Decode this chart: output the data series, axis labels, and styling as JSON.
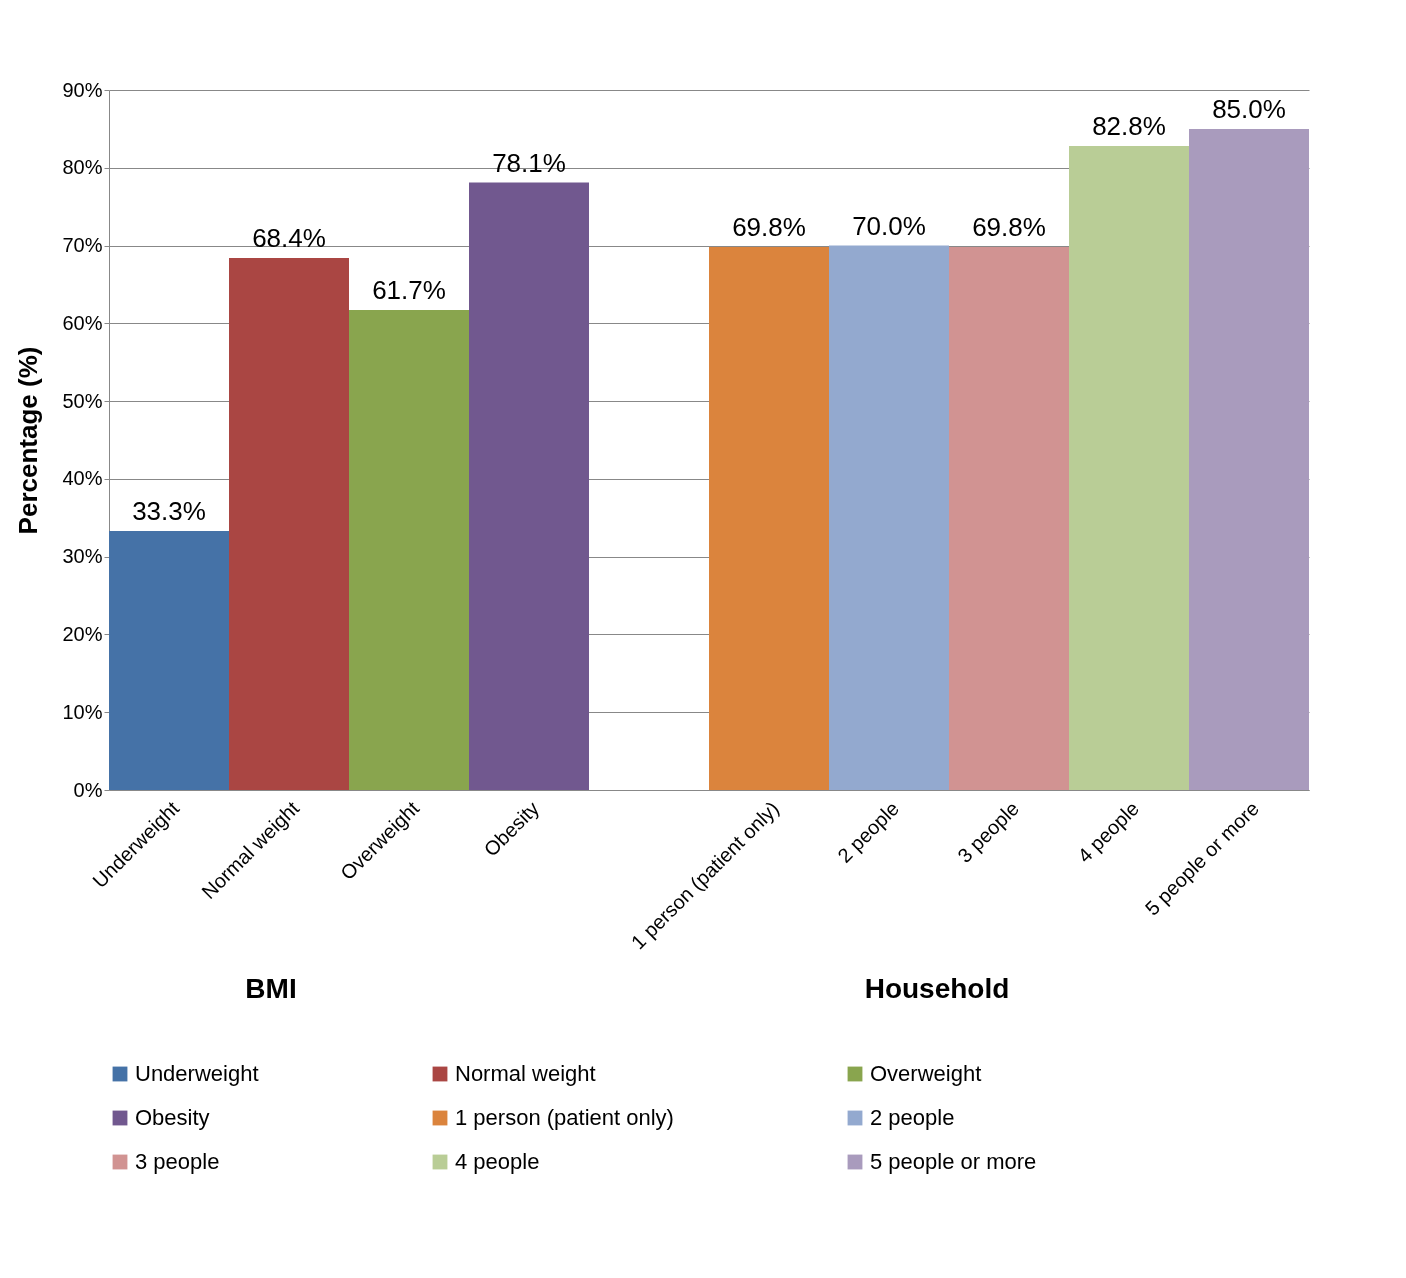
{
  "chart_data": {
    "type": "bar",
    "categories": [
      "Underweight",
      "Normal weight",
      "Overweight",
      "Obesity",
      null,
      "1 person (patient only)",
      "2 people",
      "3 people",
      "4 people",
      "5 people or more"
    ],
    "series": [
      {
        "name": "Underweight",
        "color": "#4572a7",
        "values": [
          33.3,
          null,
          null,
          null,
          null,
          null,
          null,
          null,
          null,
          null
        ],
        "value_labels": [
          "33.3%",
          null,
          null,
          null,
          null,
          null,
          null,
          null,
          null,
          null
        ]
      },
      {
        "name": "Normal weight",
        "color": "#aa4643",
        "values": [
          null,
          68.4,
          null,
          null,
          null,
          null,
          null,
          null,
          null,
          null
        ],
        "value_labels": [
          null,
          "68.4%",
          null,
          null,
          null,
          null,
          null,
          null,
          null,
          null
        ]
      },
      {
        "name": "Overweight",
        "color": "#89a54e",
        "values": [
          null,
          null,
          61.7,
          null,
          null,
          null,
          null,
          null,
          null,
          null
        ],
        "value_labels": [
          null,
          null,
          "61.7%",
          null,
          null,
          null,
          null,
          null,
          null,
          null
        ]
      },
      {
        "name": "Obesity",
        "color": "#71588f",
        "values": [
          null,
          null,
          null,
          78.1,
          null,
          null,
          null,
          null,
          null,
          null
        ],
        "value_labels": [
          null,
          null,
          null,
          "78.1%",
          null,
          null,
          null,
          null,
          null,
          null
        ]
      },
      {
        "name": "1 person (patient only)",
        "color": "#db843d",
        "values": [
          null,
          null,
          null,
          null,
          null,
          69.8,
          null,
          null,
          null,
          null
        ],
        "value_labels": [
          null,
          null,
          null,
          null,
          null,
          "69.8%",
          null,
          null,
          null,
          null
        ]
      },
      {
        "name": "2 people",
        "color": "#93a9cf",
        "values": [
          null,
          null,
          null,
          null,
          null,
          null,
          70.0,
          null,
          null,
          null
        ],
        "value_labels": [
          null,
          null,
          null,
          null,
          null,
          null,
          "70.0%",
          null,
          null,
          null
        ]
      },
      {
        "name": "3 people",
        "color": "#d19392",
        "values": [
          null,
          null,
          null,
          null,
          null,
          null,
          null,
          69.8,
          null,
          null
        ],
        "value_labels": [
          null,
          null,
          null,
          null,
          null,
          null,
          null,
          "69.8%",
          null,
          null
        ]
      },
      {
        "name": "4 people",
        "color": "#b9cd96",
        "values": [
          null,
          null,
          null,
          null,
          null,
          null,
          null,
          null,
          82.8,
          null
        ],
        "value_labels": [
          null,
          null,
          null,
          null,
          null,
          null,
          null,
          null,
          "82.8%",
          null
        ]
      },
      {
        "name": "5 people or more",
        "color": "#a99bbd",
        "values": [
          null,
          null,
          null,
          null,
          null,
          null,
          null,
          null,
          null,
          85.0
        ],
        "value_labels": [
          null,
          null,
          null,
          null,
          null,
          null,
          null,
          null,
          null,
          "85.0%"
        ]
      }
    ],
    "ylabel": "Percentage (%)",
    "ylim": [
      0,
      90
    ],
    "yticks": [
      {
        "value": 0,
        "label": "0%"
      },
      {
        "value": 10,
        "label": "10%"
      },
      {
        "value": 20,
        "label": "20%"
      },
      {
        "value": 30,
        "label": "30%"
      },
      {
        "value": 40,
        "label": "40%"
      },
      {
        "value": 50,
        "label": "50%"
      },
      {
        "value": 60,
        "label": "60%"
      },
      {
        "value": 70,
        "label": "70%"
      },
      {
        "value": 80,
        "label": "80%"
      },
      {
        "value": 90,
        "label": "90%"
      }
    ],
    "annotations": [
      "BMI",
      "Household"
    ],
    "grid": "y",
    "legend": "bottom"
  }
}
